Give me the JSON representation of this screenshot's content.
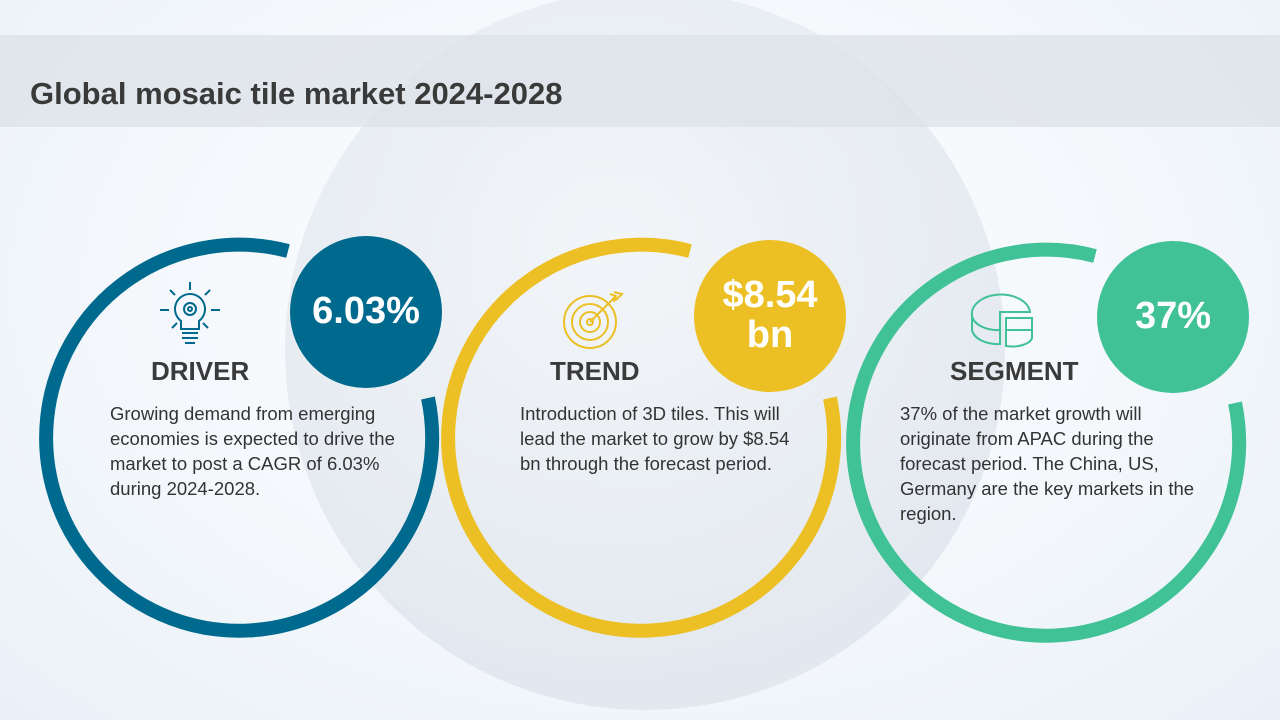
{
  "title": "Global mosaic tile market 2024-2028",
  "colors": {
    "driver": "#006a8e",
    "trend": "#ecbf25",
    "segment": "#40c196"
  },
  "cards": [
    {
      "heading": "DRIVER",
      "value": "6.03%",
      "icon": "lightbulb-gear-icon",
      "text": "Growing demand from emerging economies is expected to drive the market to post a CAGR of 6.03% during 2024-2028."
    },
    {
      "heading": "TREND",
      "value": "$8.54 bn",
      "icon": "target-arrow-icon",
      "text": "Introduction of 3D tiles. This will lead the market to grow by $8.54 bn through the forecast period."
    },
    {
      "heading": "SEGMENT",
      "value": "37%",
      "icon": "pie-chart-icon",
      "text": "37% of the market growth will originate from APAC during the forecast period. The China, US, Germany are the key markets in the region."
    }
  ]
}
